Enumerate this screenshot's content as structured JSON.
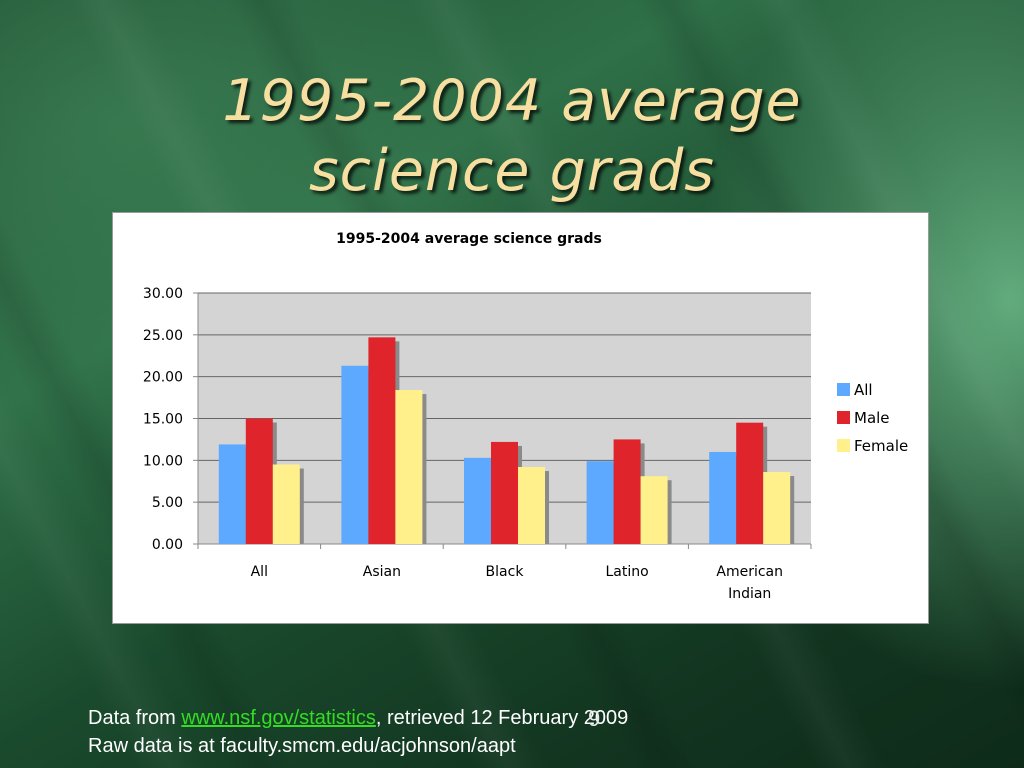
{
  "slide": {
    "title_line1": "1995-2004 average",
    "title_line2": "science grads",
    "slide_number": "9",
    "footer": {
      "prefix": "Data from ",
      "link_text": "www.nsf.gov/statistics",
      "suffix": ", retrieved 12 February 2009",
      "line2": "Raw data is at faculty.smcm.edu/acjohnson/aapt"
    }
  },
  "chart_data": {
    "type": "bar",
    "title": "1995-2004 average science grads",
    "categories": [
      "All",
      "Asian",
      "Black",
      "Latino",
      "American Indian"
    ],
    "series": [
      {
        "name": "All",
        "color": "#5ca9ff",
        "values": [
          11.9,
          21.3,
          10.3,
          9.9,
          11.0
        ]
      },
      {
        "name": "Male",
        "color": "#e0242c",
        "values": [
          15.0,
          24.7,
          12.2,
          12.5,
          14.5
        ]
      },
      {
        "name": "Female",
        "color": "#fff08c",
        "values": [
          9.5,
          18.4,
          9.2,
          8.1,
          8.6
        ]
      }
    ],
    "y_ticks": [
      "30.00",
      "25.00",
      "20.00",
      "15.00",
      "10.00",
      "5.00",
      "0.00"
    ],
    "ylim": [
      0,
      30
    ],
    "grid": true,
    "legend": "right",
    "plot_background": "#d4d4d4"
  }
}
